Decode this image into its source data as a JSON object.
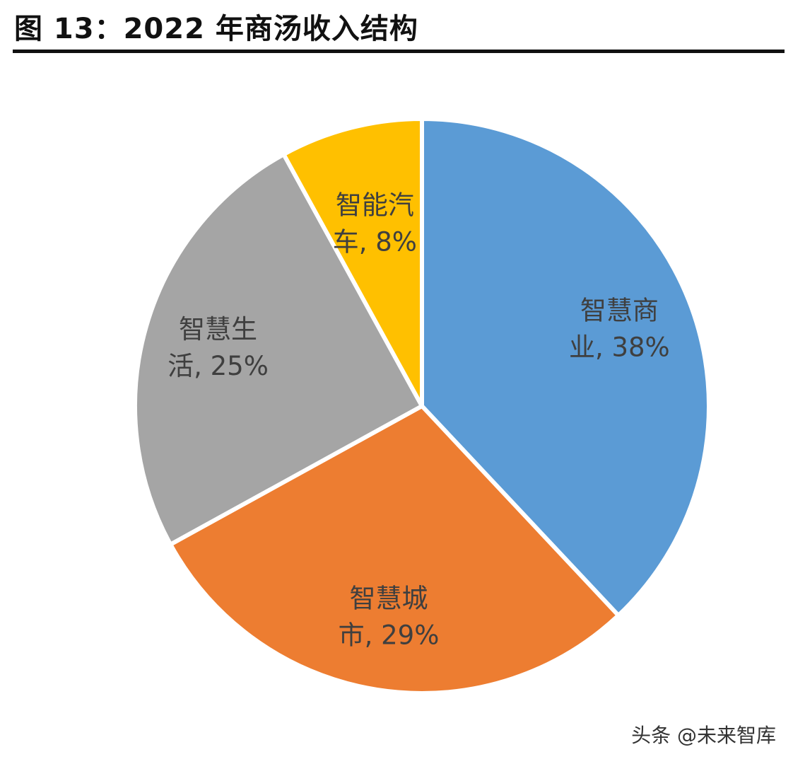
{
  "title": "图 13：2022 年商汤收入结构",
  "watermark": "头条 @未来智库",
  "chart_data": {
    "type": "pie",
    "title": "图 13：2022 年商汤收入结构",
    "start": "12 o'clock, clockwise",
    "slices": [
      {
        "name": "智慧商业",
        "value": 38,
        "color": "#5B9BD5"
      },
      {
        "name": "智慧城市",
        "value": 29,
        "color": "#ED7D31"
      },
      {
        "name": "智慧生活",
        "value": 25,
        "color": "#A5A5A5"
      },
      {
        "name": "智能汽车",
        "value": 8,
        "color": "#FFC000"
      }
    ]
  }
}
